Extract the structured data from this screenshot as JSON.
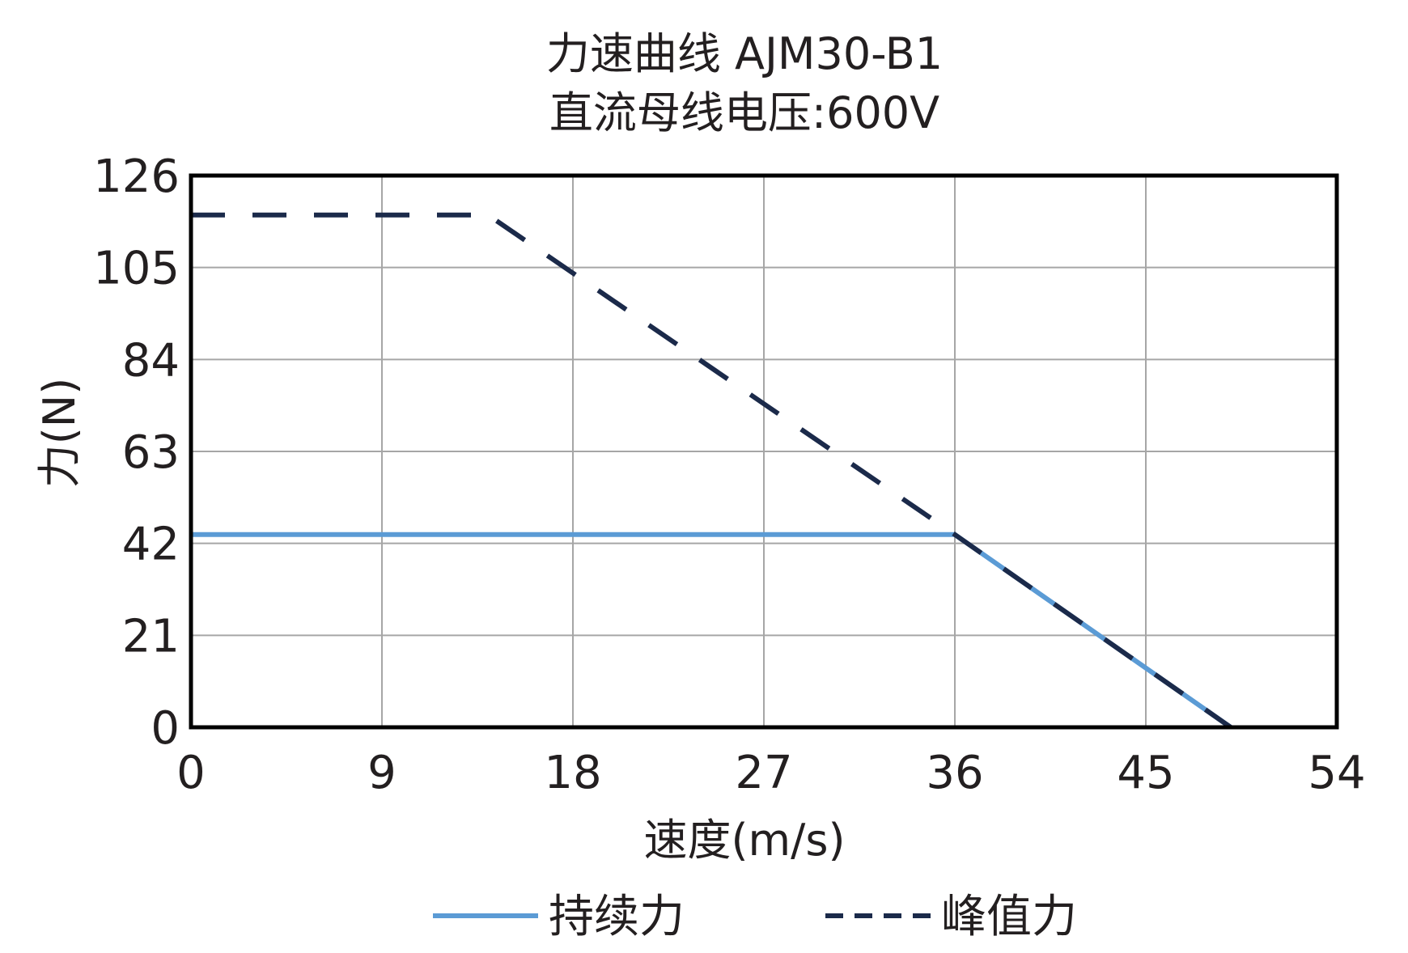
{
  "chart_data": {
    "type": "line",
    "title": "力速曲线 AJM30-B1",
    "subtitle": "直流母线电压:600V",
    "xlabel": "速度(m/s)",
    "ylabel": "力(N)",
    "xlim": [
      0,
      54
    ],
    "ylim": [
      0,
      126
    ],
    "x_ticks": [
      "0",
      "9",
      "18",
      "27",
      "36",
      "45",
      "54"
    ],
    "y_ticks": [
      "0",
      "21",
      "42",
      "63",
      "84",
      "105",
      "126"
    ],
    "grid": true,
    "legend_position": "bottom",
    "series": [
      {
        "name": "持续力",
        "style": "solid",
        "color": "#5b9bd5",
        "points": [
          [
            0,
            44
          ],
          [
            36,
            44
          ],
          [
            49,
            0
          ]
        ]
      },
      {
        "name": "峰值力",
        "style": "dashed",
        "color": "#1b2a4a",
        "points": [
          [
            0,
            117
          ],
          [
            14,
            117
          ],
          [
            36,
            44
          ],
          [
            49,
            0
          ]
        ]
      }
    ]
  }
}
